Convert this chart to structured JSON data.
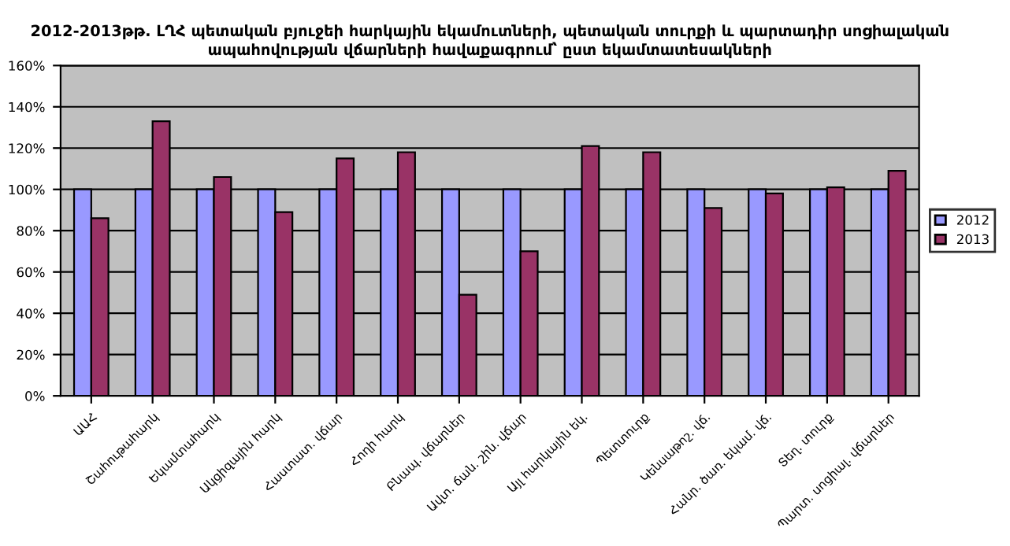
{
  "chart_data": {
    "type": "bar",
    "title": "2012-2013թթ. ԼՂՀ պետական բյուջեի հարկային եկամուտների, պետական տուրքի և պարտադիր սոցիալական ապահովության վճարների հավաքագրում՝ ըստ եկամտատեսակների",
    "categories": [
      "ԱԱՀ",
      "Շահութահարկ",
      "Եկամտահարկ",
      "Ակցիզային հարկ",
      "Հաստատ. վճար",
      "Հողի հարկ",
      "Բնապ. վճարներ",
      "Ավտ. ճան. շին. վճար",
      "Այլ հարկային եկ.",
      "Պետտուրք",
      "Կենսաթոշ. վճ.",
      "Հանր. ծառ. եկամ. վճ.",
      "Տեղ. տուրք",
      "Պարտ. սոցիալ. վճարներ"
    ],
    "series": [
      {
        "name": "2012",
        "color": "#9999ff",
        "values": [
          100,
          100,
          100,
          100,
          100,
          100,
          100,
          100,
          100,
          100,
          100,
          100,
          100,
          100
        ]
      },
      {
        "name": "2013",
        "color": "#993366",
        "values": [
          86,
          133,
          106,
          89,
          115,
          118,
          49,
          70,
          121,
          118,
          91,
          98,
          101,
          109
        ]
      }
    ],
    "ylim": [
      0,
      160
    ],
    "yticks": [
      {
        "value": 0,
        "label": "0%"
      },
      {
        "value": 20,
        "label": "20%"
      },
      {
        "value": 40,
        "label": "40%"
      },
      {
        "value": 60,
        "label": "60%"
      },
      {
        "value": 80,
        "label": "80%"
      },
      {
        "value": 100,
        "label": "100%"
      },
      {
        "value": 120,
        "label": "120%"
      },
      {
        "value": 140,
        "label": "140%"
      },
      {
        "value": 160,
        "label": "160%"
      }
    ],
    "grid": "y",
    "legend": "right"
  }
}
